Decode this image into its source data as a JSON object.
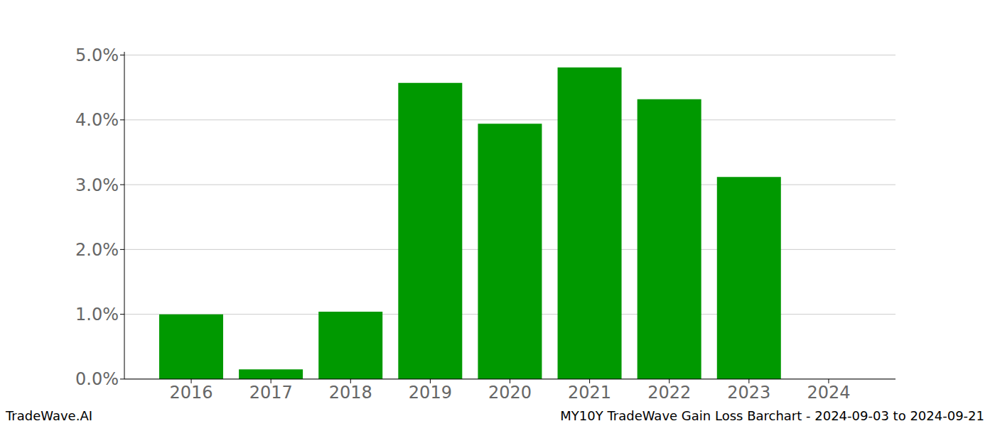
{
  "chart_data": {
    "type": "bar",
    "title": "MY10Y TradeWave Gain Loss Barchart - 2024-09-03 to 2024-09-21",
    "source": "TradeWave.AI",
    "categories": [
      "2016",
      "2017",
      "2018",
      "2019",
      "2020",
      "2021",
      "2022",
      "2023",
      "2024"
    ],
    "values": [
      1.0,
      0.15,
      1.04,
      4.57,
      3.94,
      4.81,
      4.32,
      3.12,
      0
    ],
    "color": "#009900",
    "ylim": [
      0,
      5.05
    ],
    "yticks": [
      {
        "value": 0,
        "label": "0.0%"
      },
      {
        "value": 1,
        "label": "1.0%"
      },
      {
        "value": 2,
        "label": "2.0%"
      },
      {
        "value": 3,
        "label": "3.0%"
      },
      {
        "value": 4,
        "label": "4.0%"
      },
      {
        "value": 5,
        "label": "5.0%"
      }
    ],
    "grid": true
  }
}
